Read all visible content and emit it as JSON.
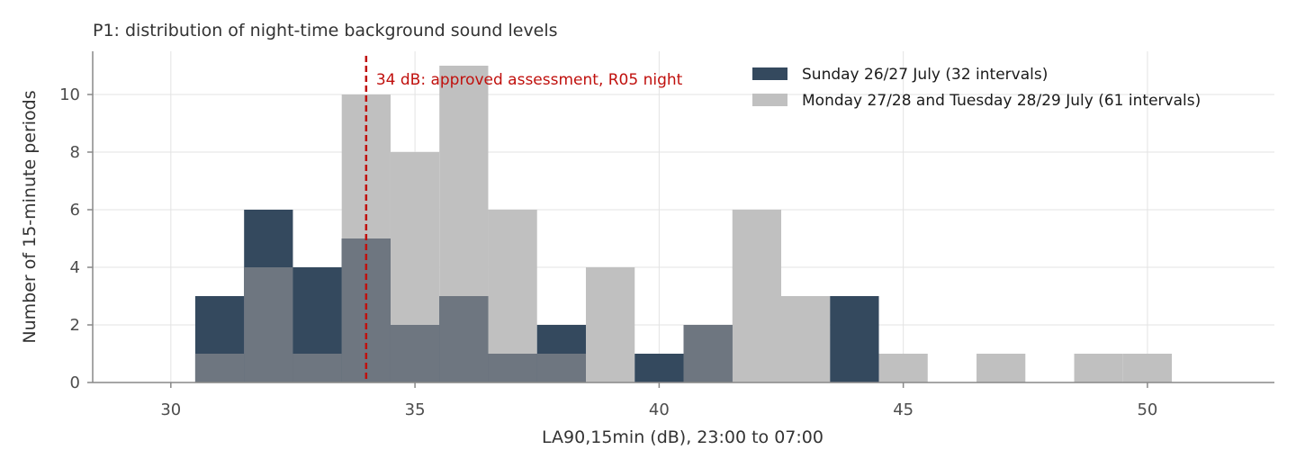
{
  "chart_data": {
    "type": "histogram",
    "title": "P1: distribution of night-time background sound levels",
    "xlabel": "LA90,15min (dB), 23:00 to 07:00",
    "ylabel": "Number of 15-minute periods",
    "xlim": [
      28.4,
      52.6
    ],
    "ylim": [
      0,
      11.5
    ],
    "xticks": [
      30,
      35,
      40,
      45,
      50
    ],
    "yticks": [
      0,
      2,
      4,
      6,
      8,
      10
    ],
    "grid": true,
    "legend_position": "top-right",
    "bin_width": 1,
    "bin_starts": [
      30.5,
      31.5,
      32.5,
      33.5,
      34.5,
      35.5,
      36.5,
      37.5,
      38.5,
      39.5,
      40.5,
      41.5,
      42.5,
      43.5,
      44.5,
      45.5,
      46.5,
      47.5,
      48.5,
      49.5
    ],
    "series": [
      {
        "name": "Monday 27/28 and Tuesday 28/29 July (61 intervals)",
        "color": "#c0c0c0",
        "values": [
          1,
          4,
          1,
          10,
          8,
          11,
          6,
          1,
          4,
          0,
          2,
          6,
          3,
          0,
          1,
          0,
          1,
          0,
          1,
          1
        ]
      },
      {
        "name": "Sunday 26/27 July (32 intervals)",
        "color": "#34495e",
        "values": [
          3,
          6,
          4,
          5,
          2,
          3,
          1,
          2,
          0,
          1,
          2,
          0,
          0,
          3,
          0,
          0,
          0,
          0,
          0,
          0
        ]
      }
    ],
    "overlap_color": "#6e7680",
    "reference_line": {
      "x": 34,
      "label": "34 dB: approved assessment, R05 night",
      "color": "#c0100d"
    }
  }
}
